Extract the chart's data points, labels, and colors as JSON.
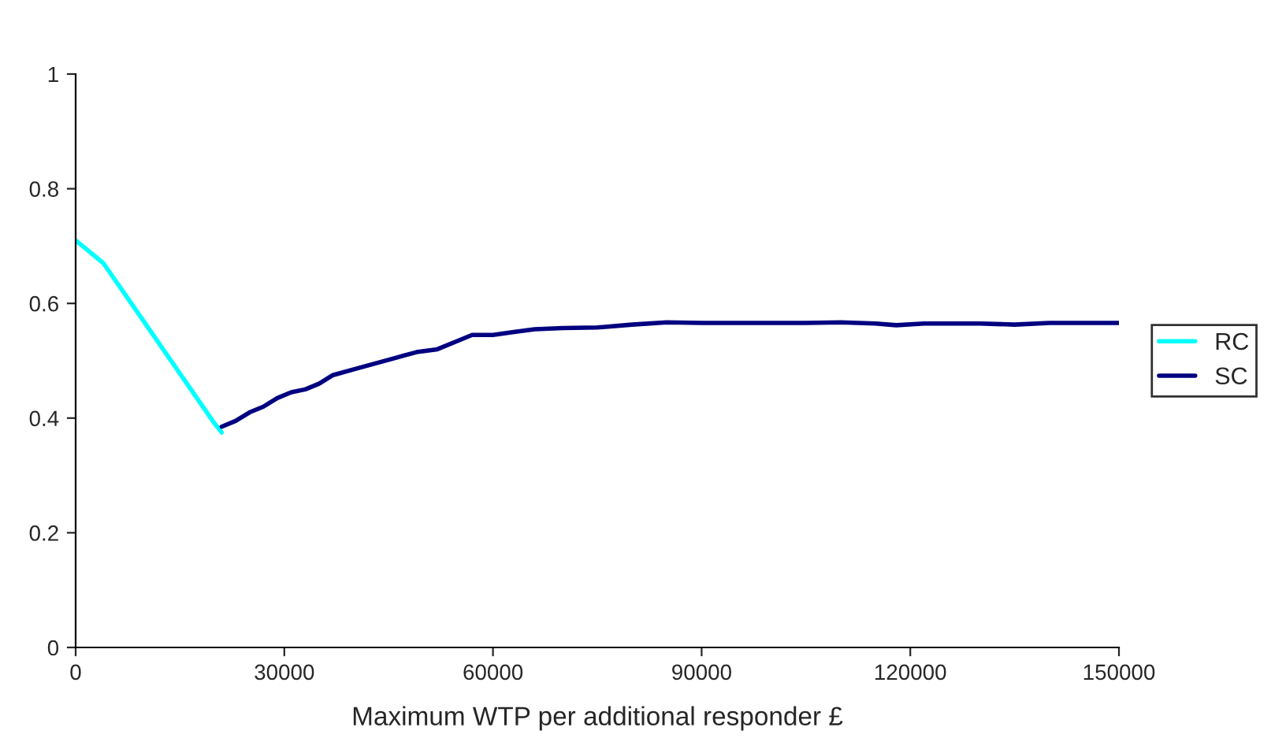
{
  "chart_data": {
    "type": "line",
    "xlabel": "Maximum WTP per additional responder £",
    "xlim": [
      0,
      150000
    ],
    "xticks": [
      0,
      30000,
      60000,
      90000,
      120000,
      150000
    ],
    "ylim": [
      0,
      1
    ],
    "yticks": [
      0,
      0.2,
      0.4,
      0.6,
      0.8,
      1
    ],
    "grid": false,
    "legend": "right",
    "marker": "none",
    "line_style": "solid",
    "series": [
      {
        "name": "RC",
        "color": "#00ffff",
        "x": [
          0,
          2000,
          4000,
          6000,
          8000,
          10000,
          12000,
          14000,
          16000,
          18000,
          20000,
          21000
        ],
        "values": [
          0.71,
          0.69,
          0.67,
          0.635,
          0.6,
          0.565,
          0.53,
          0.495,
          0.46,
          0.425,
          0.39,
          0.375
        ]
      },
      {
        "name": "SC",
        "color": "#000080",
        "x": [
          21000,
          23000,
          25000,
          27000,
          29000,
          31000,
          33000,
          35000,
          37000,
          40000,
          43000,
          46000,
          49000,
          52000,
          55000,
          57000,
          60000,
          63000,
          66000,
          70000,
          75000,
          80000,
          85000,
          90000,
          95000,
          100000,
          105000,
          110000,
          115000,
          118000,
          122000,
          130000,
          135000,
          140000,
          150000
        ],
        "values": [
          0.385,
          0.395,
          0.41,
          0.42,
          0.435,
          0.445,
          0.45,
          0.46,
          0.475,
          0.485,
          0.495,
          0.505,
          0.515,
          0.52,
          0.535,
          0.545,
          0.545,
          0.55,
          0.555,
          0.557,
          0.558,
          0.563,
          0.567,
          0.566,
          0.566,
          0.566,
          0.566,
          0.567,
          0.565,
          0.562,
          0.565,
          0.565,
          0.563,
          0.566,
          0.566
        ]
      }
    ]
  }
}
